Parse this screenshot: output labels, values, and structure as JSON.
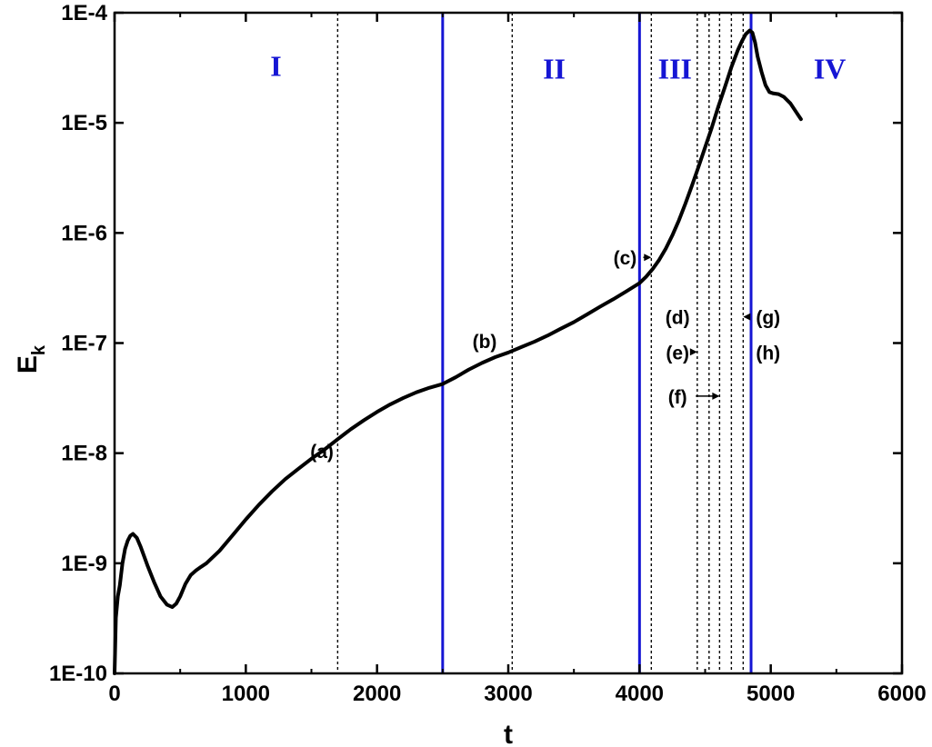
{
  "chart_data": {
    "type": "line",
    "title": "",
    "xlabel": "t",
    "ylabel": "E",
    "ylabel_subscript": "k",
    "xlim": [
      0,
      6000
    ],
    "ylim": [
      1e-10,
      0.0001
    ],
    "yscale": "log",
    "grid": false,
    "x_ticks": [
      0,
      1000,
      2000,
      3000,
      4000,
      5000,
      6000
    ],
    "x_tick_labels": [
      "0",
      "1000",
      "2000",
      "3000",
      "4000",
      "5000",
      "6000"
    ],
    "y_ticks": [
      1e-10,
      1e-09,
      1e-08,
      1e-07,
      1e-06,
      1e-05,
      0.0001
    ],
    "y_tick_labels": [
      "1E-10",
      "1E-9",
      "1E-8",
      "1E-7",
      "1E-6",
      "1E-5",
      "1E-4"
    ],
    "series": [
      {
        "color": "#000000",
        "x": [
          0,
          10,
          25,
          40,
          60,
          80,
          100,
          120,
          140,
          170,
          200,
          250,
          300,
          350,
          400,
          440,
          470,
          500,
          540,
          580,
          620,
          660,
          700,
          800,
          900,
          1000,
          1100,
          1200,
          1300,
          1400,
          1500,
          1600,
          1700,
          1800,
          1900,
          2000,
          2100,
          2200,
          2300,
          2400,
          2500,
          2600,
          2700,
          2800,
          2900,
          3000,
          3100,
          3200,
          3300,
          3400,
          3500,
          3600,
          3700,
          3800,
          3900,
          4000,
          4050,
          4100,
          4150,
          4200,
          4250,
          4300,
          4350,
          4400,
          4450,
          4500,
          4550,
          4600,
          4650,
          4700,
          4750,
          4780,
          4810,
          4840,
          4860,
          4880,
          4900,
          4930,
          4960,
          4990,
          5020,
          5060,
          5100,
          5150,
          5200,
          5230
        ],
        "y": [
          1e-10,
          3.2e-10,
          5e-10,
          6.3e-10,
          1e-09,
          1.35e-09,
          1.6e-09,
          1.78e-09,
          1.85e-09,
          1.7e-09,
          1.4e-09,
          9.6e-10,
          6.8e-10,
          5e-10,
          4.2e-10,
          4e-10,
          4.3e-10,
          5e-10,
          6.5e-10,
          7.8e-10,
          8.6e-10,
          9.3e-10,
          1e-09,
          1.3e-09,
          1.8e-09,
          2.5e-09,
          3.4e-09,
          4.5e-09,
          5.8e-09,
          7.2e-09,
          8.9e-09,
          1.08e-08,
          1.34e-08,
          1.65e-08,
          1.99e-08,
          2.37e-08,
          2.77e-08,
          3.17e-08,
          3.57e-08,
          3.93e-08,
          4.25e-08,
          4.9e-08,
          5.75e-08,
          6.6e-08,
          7.45e-08,
          8.2e-08,
          9.2e-08,
          1.03e-07,
          1.17e-07,
          1.35e-07,
          1.55e-07,
          1.82e-07,
          2.14e-07,
          2.5e-07,
          2.95e-07,
          3.5e-07,
          4e-07,
          4.7e-07,
          5.7e-07,
          7.2e-07,
          9.5e-07,
          1.3e-06,
          1.85e-06,
          2.7e-06,
          4e-06,
          6e-06,
          9e-06,
          1.4e-05,
          2.1e-05,
          3.2e-05,
          4.6e-05,
          5.5e-05,
          6.4e-05,
          6.9e-05,
          6.6e-05,
          5.4e-05,
          4e-05,
          2.9e-05,
          2.2e-05,
          1.9e-05,
          1.85e-05,
          1.82e-05,
          1.72e-05,
          1.5e-05,
          1.22e-05,
          1.08e-05
        ]
      }
    ],
    "solid_vertical_lines": {
      "color": "#1515d4",
      "x": [
        2500,
        4000,
        4850
      ]
    },
    "dotted_vertical_lines": {
      "color": "#000000",
      "x": [
        1700,
        3030,
        4090,
        4440,
        4530,
        4610,
        4700,
        4790
      ]
    },
    "region_labels": [
      {
        "label": "I",
        "x": 1230,
        "y": 3.3e-05
      },
      {
        "label": "II",
        "x": 3350,
        "y": 3.1e-05
      },
      {
        "label": "III",
        "x": 4270,
        "y": 3.1e-05
      },
      {
        "label": "IV",
        "x": 5450,
        "y": 3.1e-05
      }
    ],
    "annotations": [
      {
        "label": "(a)",
        "x": 1580,
        "y": 1.05e-08,
        "arrow": false
      },
      {
        "label": "(b)",
        "x": 2820,
        "y": 1.05e-07,
        "arrow": false
      },
      {
        "label": "(c)",
        "x": 3890,
        "y": 6e-07,
        "arrow": true,
        "arrow_to_x": 4090,
        "arrow_to_y": 6e-07
      },
      {
        "label": "(d)",
        "x": 4290,
        "y": 1.73e-07,
        "arrow": false
      },
      {
        "label": "(e)",
        "x": 4290,
        "y": 8.3e-08,
        "arrow": true,
        "arrow_to_x": 4440,
        "arrow_to_y": 8.3e-08
      },
      {
        "label": "(f)",
        "x": 4290,
        "y": 3.3e-08,
        "arrow": true,
        "arrow_to_x": 4610,
        "arrow_to_y": 3.3e-08
      },
      {
        "label": "(g)",
        "x": 4980,
        "y": 1.73e-07,
        "arrow": true,
        "arrow_to_x": 4790,
        "arrow_to_y": 1.73e-07
      },
      {
        "label": "(h)",
        "x": 4980,
        "y": 8.3e-08,
        "arrow": false
      }
    ]
  }
}
